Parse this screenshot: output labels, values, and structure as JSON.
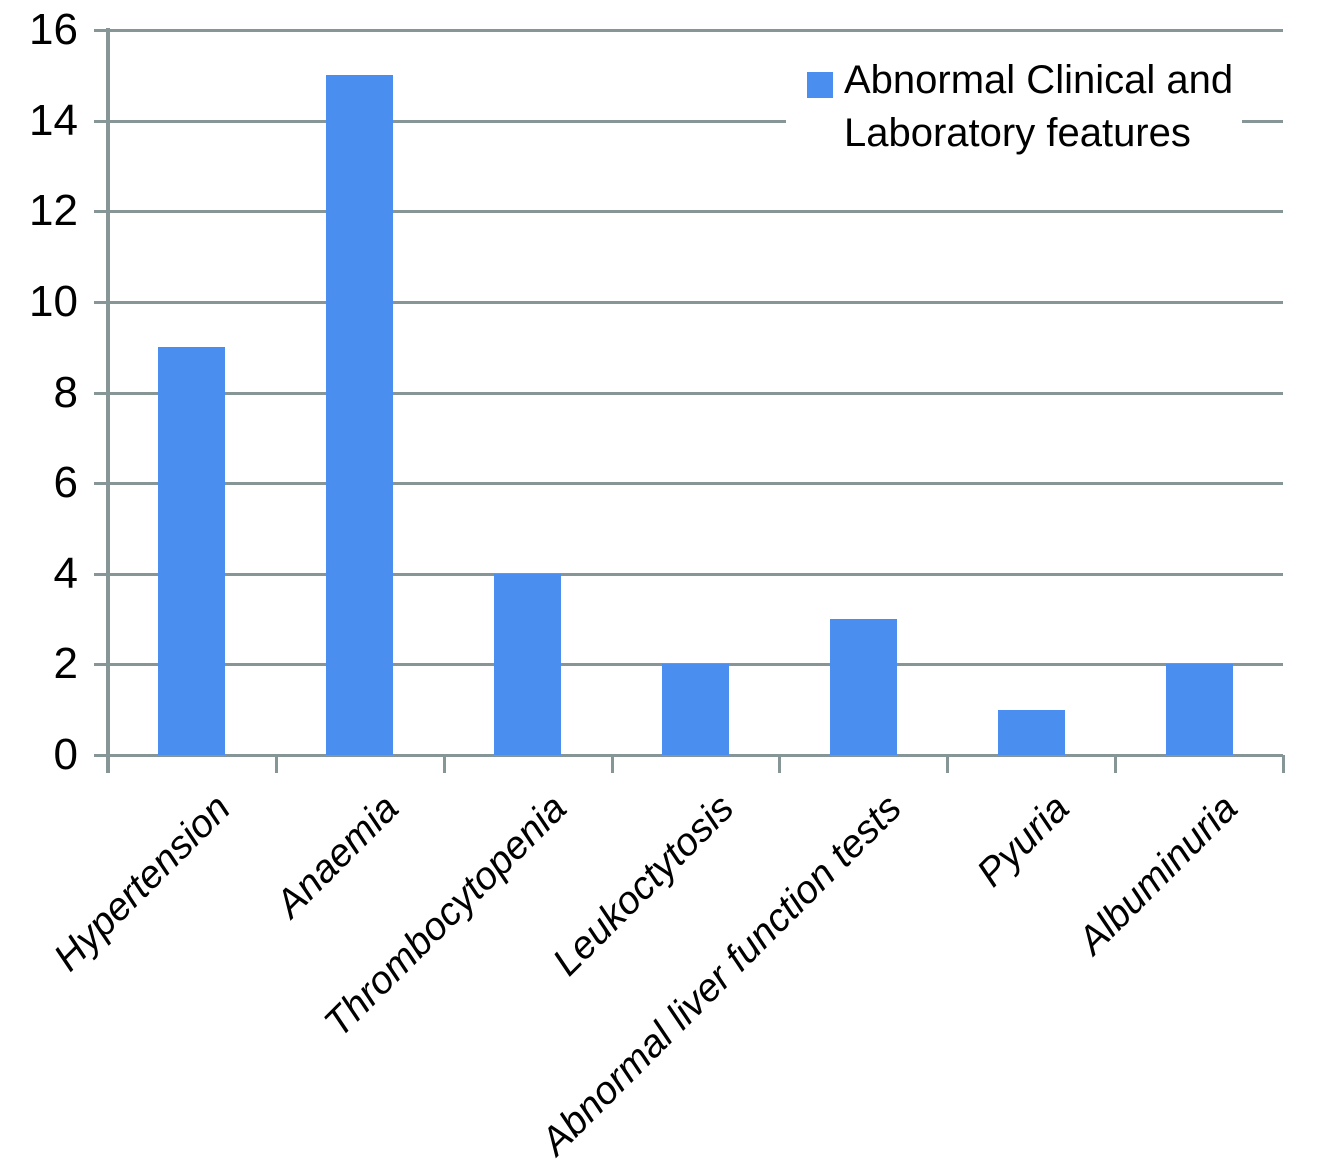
{
  "chart_data": {
    "type": "bar",
    "categories": [
      "Hypertension",
      "Anaemia",
      "Thrombocytopenia",
      "Leukoctytosis",
      "Abnormal liver function tests",
      "Pyuria",
      "Albuminuria"
    ],
    "values": [
      9,
      15,
      4,
      2,
      3,
      1,
      2
    ],
    "series": [
      {
        "name": "Abnormal Clinical and Laboratory features",
        "values": [
          9,
          15,
          4,
          2,
          3,
          1,
          2
        ]
      }
    ],
    "title": "",
    "xlabel": "",
    "ylabel": "",
    "ylim": [
      0,
      16
    ],
    "yticks": [
      0,
      2,
      4,
      6,
      8,
      10,
      12,
      14,
      16
    ],
    "grid": true,
    "legend_position": "top-right",
    "legend": {
      "line1": "Abnormal Clinical and",
      "line2": "Laboratory features"
    },
    "colors": {
      "bar": "#4a8ff0",
      "gridline": "#869696",
      "axis": "#869696",
      "text": "#000000",
      "background": "#ffffff"
    }
  }
}
